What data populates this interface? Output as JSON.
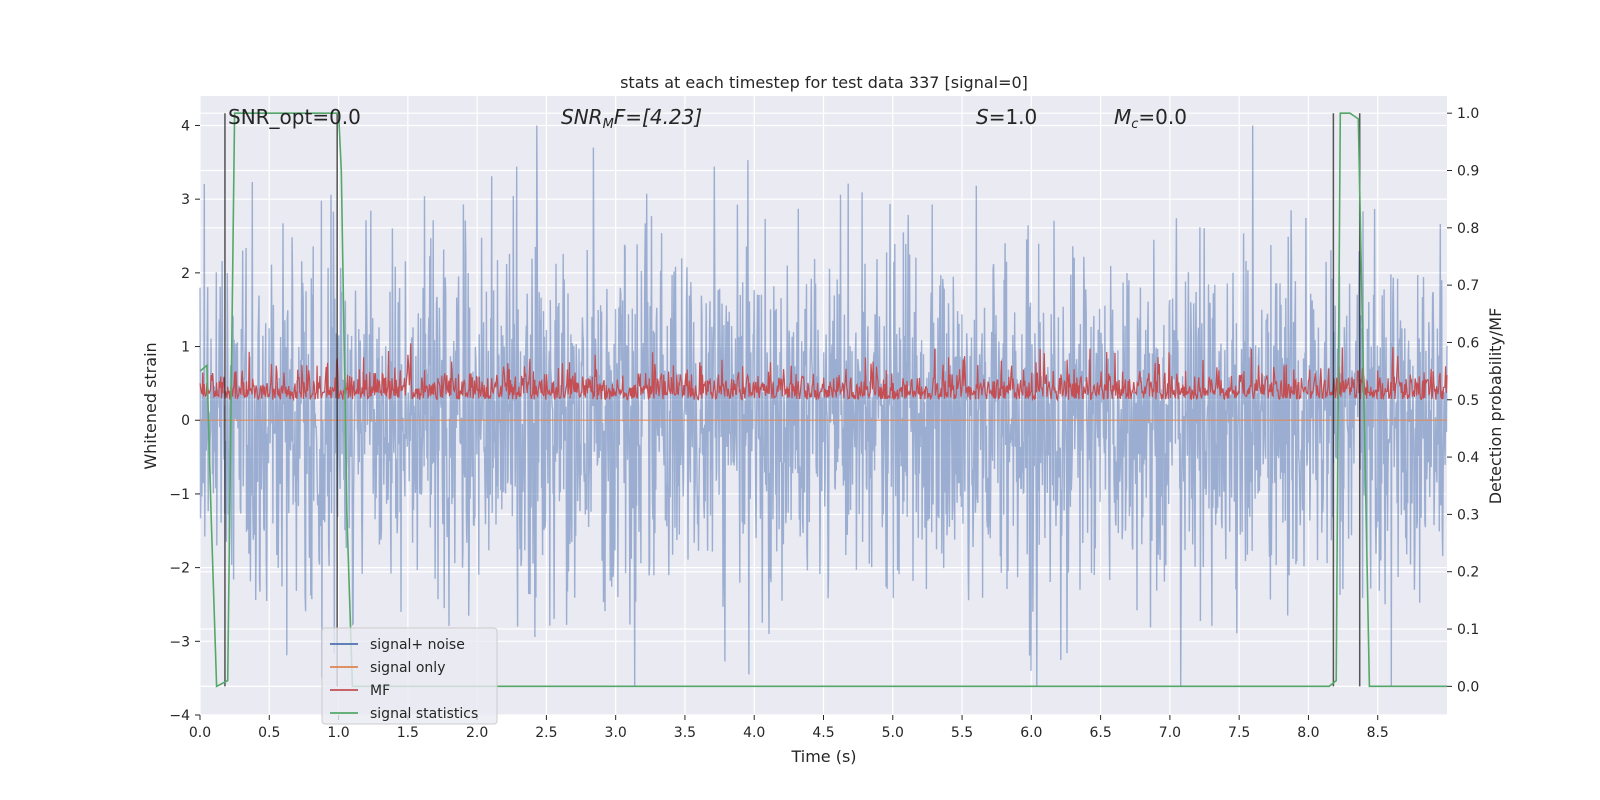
{
  "chart_data": {
    "type": "line",
    "title": "stats at each timestep for test data 337 [signal=0]",
    "xlabel": "Time (s)",
    "ylabel": "Whitened strain",
    "y2label": "Detection probability/MF",
    "xlim": [
      0.0,
      9.0
    ],
    "ylim": [
      -4.0,
      4.4
    ],
    "y2lim": [
      -0.05,
      1.03
    ],
    "x_ticks": [
      0.0,
      0.5,
      1.0,
      1.5,
      2.0,
      2.5,
      3.0,
      3.5,
      4.0,
      4.5,
      5.0,
      5.5,
      6.0,
      6.5,
      7.0,
      7.5,
      8.0,
      8.5
    ],
    "x_tick_labels": [
      "0.0",
      "0.5",
      "1.0",
      "1.5",
      "2.0",
      "2.5",
      "3.0",
      "3.5",
      "4.0",
      "4.5",
      "5.0",
      "5.5",
      "6.0",
      "6.5",
      "7.0",
      "7.5",
      "8.0",
      "8.5"
    ],
    "y_ticks": [
      4,
      3,
      2,
      1,
      0,
      -1,
      -2,
      -3,
      -4
    ],
    "y_tick_labels": [
      "4",
      "3",
      "2",
      "1",
      "0",
      "−1",
      "−2",
      "−3",
      "−4"
    ],
    "y2_ticks": [
      1.0,
      0.9,
      0.8,
      0.7,
      0.6,
      0.5,
      0.4,
      0.3,
      0.2,
      0.1,
      0.0
    ],
    "y2_tick_labels": [
      "1.0",
      "0.9",
      "0.8",
      "0.7",
      "0.6",
      "0.5",
      "0.4",
      "0.3",
      "0.2",
      "0.1",
      "0.0"
    ],
    "grid": true,
    "legend_position": "lower-left",
    "annotations": {
      "snr_opt": "SNR_opt=0.0",
      "snr_mf_name": "SNR",
      "snr_mf_sub": "M",
      "snr_mf_rest": "F=[4.23]",
      "s_name": "S",
      "s_rest": "=1.0",
      "mc_name": "M",
      "mc_sub": "c",
      "mc_rest": "=0.0"
    },
    "series": [
      {
        "name": "signal+ noise",
        "color": "#4c72b0",
        "axis": "left",
        "description_values": "whitened strain noise, approx. gaussian with std ~1, extremes reaching +4 / -3.6"
      },
      {
        "name": "signal only",
        "color": "#dd8452",
        "axis": "left",
        "values_flat": 0.0
      },
      {
        "name": "MF",
        "color": "#c44e52",
        "axis": "right",
        "range": [
          0.5,
          0.6
        ]
      },
      {
        "name": "signal statistics",
        "color": "#55a868",
        "x": [
          0.0,
          0.05,
          0.08,
          0.12,
          0.2,
          0.25,
          0.3,
          1.0,
          1.02,
          1.06,
          1.1,
          8.15,
          8.2,
          8.23,
          8.27,
          8.3,
          8.36,
          8.4,
          8.44,
          8.5,
          9.0
        ],
        "values": [
          0.55,
          0.56,
          0.3,
          0.0,
          0.01,
          1.0,
          1.0,
          1.0,
          0.9,
          0.3,
          0.0,
          0.0,
          0.01,
          1.0,
          1.0,
          1.0,
          0.99,
          0.5,
          0.0,
          0.0,
          0.0
        ],
        "axis": "right"
      }
    ],
    "vertical_lines": [
      0.18,
      0.99,
      8.18,
      8.37
    ]
  },
  "legend": {
    "items": [
      {
        "label": "signal+ noise",
        "color": "#4c72b0"
      },
      {
        "label": "signal only",
        "color": "#dd8452"
      },
      {
        "label": "MF",
        "color": "#c44e52"
      },
      {
        "label": "signal statistics",
        "color": "#55a868"
      }
    ]
  }
}
